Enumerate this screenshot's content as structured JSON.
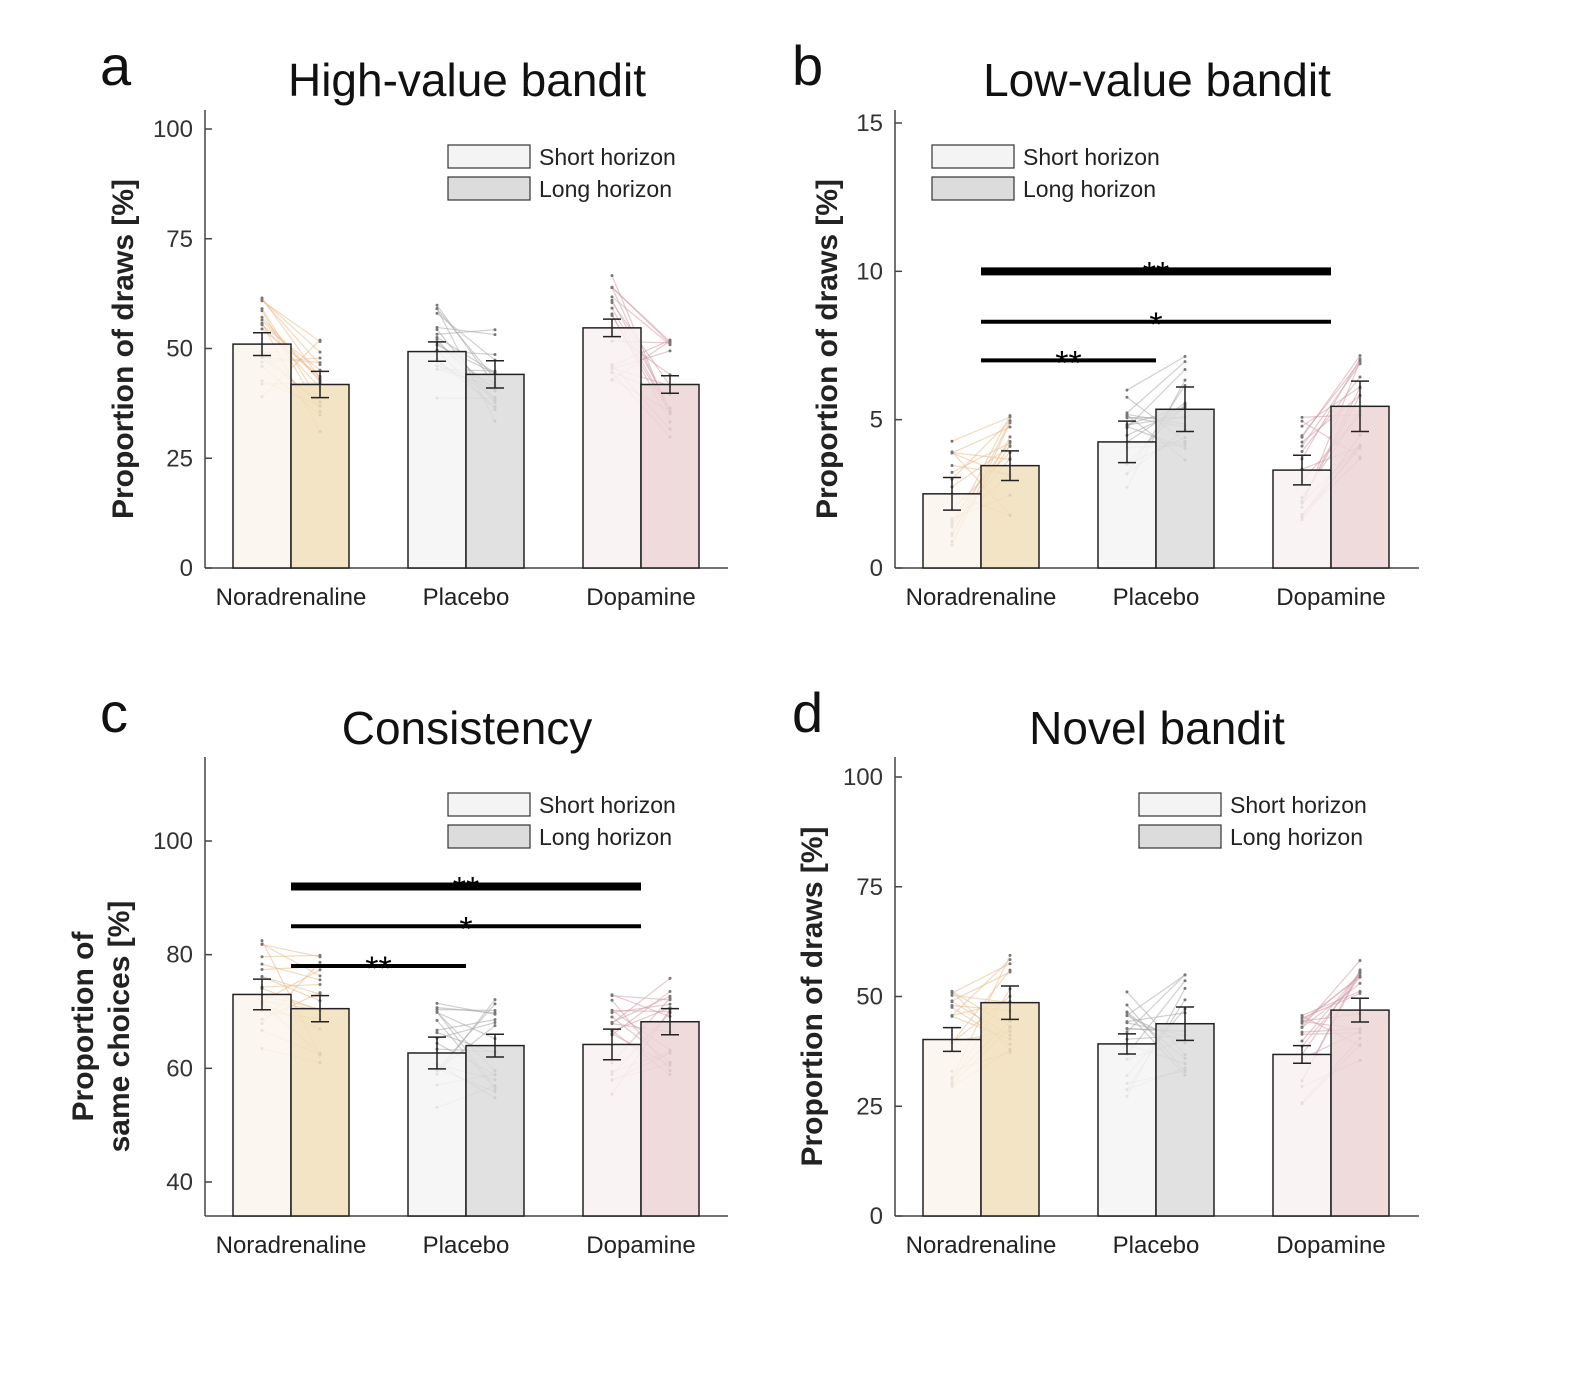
{
  "chart_data": [
    {
      "panel": "a",
      "type": "bar",
      "title": "High-value bandit",
      "ylabel": "Proportion of draws [%]",
      "xlabel": "",
      "ylim": [
        0,
        100
      ],
      "yticks": [
        0,
        25,
        50,
        75,
        100
      ],
      "categories": [
        "Noradrenaline",
        "Placebo",
        "Dopamine"
      ],
      "legend": {
        "position": "top-right",
        "entries": [
          "Short horizon",
          "Long horizon"
        ]
      },
      "series": [
        {
          "name": "Short horizon",
          "values": [
            51,
            49.3,
            54.7
          ],
          "errors": [
            2.6,
            2.2,
            2.0
          ]
        },
        {
          "name": "Long horizon",
          "values": [
            41.8,
            44.1,
            41.8
          ],
          "errors": [
            3.0,
            3.1,
            2.0
          ]
        }
      ],
      "colors": {
        "Noradrenaline": [
          "#faf4ec",
          "#f1dfbb"
        ],
        "Placebo": [
          "#f4f4f4",
          "#dcdcdc"
        ],
        "Dopamine": [
          "#f9f1f1",
          "#ecd5d6"
        ]
      },
      "significance": []
    },
    {
      "panel": "b",
      "type": "bar",
      "title": "Low-value bandit",
      "ylabel": "Proportion of draws [%]",
      "xlabel": "",
      "ylim": [
        0,
        15
      ],
      "yticks": [
        0,
        5,
        10,
        15
      ],
      "categories": [
        "Noradrenaline",
        "Placebo",
        "Dopamine"
      ],
      "legend": {
        "position": "top-left",
        "entries": [
          "Short horizon",
          "Long horizon"
        ]
      },
      "series": [
        {
          "name": "Short horizon",
          "values": [
            2.5,
            4.25,
            3.3
          ],
          "errors": [
            0.55,
            0.7,
            0.5
          ]
        },
        {
          "name": "Long horizon",
          "values": [
            3.45,
            5.35,
            5.45
          ],
          "errors": [
            0.5,
            0.75,
            0.85
          ]
        }
      ],
      "colors": {
        "Noradrenaline": [
          "#faf4ec",
          "#f1dfbb"
        ],
        "Placebo": [
          "#f4f4f4",
          "#dcdcdc"
        ],
        "Dopamine": [
          "#f9f1f1",
          "#ecd5d6"
        ]
      },
      "significance": [
        {
          "from": "Noradrenaline",
          "to": "Dopamine",
          "y": 10.0,
          "label": "**",
          "thick": true
        },
        {
          "from": "Noradrenaline",
          "to": "Dopamine",
          "y": 8.3,
          "label": "*",
          "thick": false
        },
        {
          "from": "Noradrenaline",
          "to": "Placebo",
          "y": 7.0,
          "label": "**",
          "thick": false
        }
      ]
    },
    {
      "panel": "c",
      "type": "bar",
      "title": "Consistency",
      "ylabel": "Proportion of same choices [%]",
      "ylabel_lines": [
        "Proportion of",
        "same choices [%]"
      ],
      "xlabel": "",
      "ylim": [
        35,
        115
      ],
      "yticks": [
        40,
        60,
        80,
        100
      ],
      "categories": [
        "Noradrenaline",
        "Placebo",
        "Dopamine"
      ],
      "legend": {
        "position": "top-right",
        "entries": [
          "Short horizon",
          "Long horizon"
        ]
      },
      "series": [
        {
          "name": "Short horizon",
          "values": [
            73,
            62.7,
            64.2
          ],
          "errors": [
            2.7,
            2.8,
            2.7
          ]
        },
        {
          "name": "Long horizon",
          "values": [
            70.5,
            64,
            68.2
          ],
          "errors": [
            2.3,
            2.0,
            2.3
          ]
        }
      ],
      "colors": {
        "Noradrenaline": [
          "#faf4ec",
          "#f1dfbb"
        ],
        "Placebo": [
          "#f4f4f4",
          "#dcdcdc"
        ],
        "Dopamine": [
          "#f9f1f1",
          "#ecd5d6"
        ]
      },
      "significance": [
        {
          "from": "Noradrenaline",
          "to": "Dopamine",
          "y": 92,
          "label": "**",
          "thick": true
        },
        {
          "from": "Noradrenaline",
          "to": "Dopamine",
          "y": 85,
          "label": "*",
          "thick": false
        },
        {
          "from": "Noradrenaline",
          "to": "Placebo",
          "y": 78,
          "label": "**",
          "thick": false
        }
      ]
    },
    {
      "panel": "d",
      "type": "bar",
      "title": "Novel bandit",
      "ylabel": "Proportion of draws [%]",
      "xlabel": "",
      "ylim": [
        0,
        100
      ],
      "yticks": [
        0,
        25,
        50,
        75,
        100
      ],
      "categories": [
        "Noradrenaline",
        "Placebo",
        "Dopamine"
      ],
      "legend": {
        "position": "top-right",
        "entries": [
          "Short horizon",
          "Long horizon"
        ]
      },
      "series": [
        {
          "name": "Short horizon",
          "values": [
            40.2,
            39.2,
            36.8
          ],
          "errors": [
            2.7,
            2.3,
            2.0
          ]
        },
        {
          "name": "Long horizon",
          "values": [
            48.6,
            43.8,
            46.9
          ],
          "errors": [
            3.8,
            3.8,
            2.7
          ]
        }
      ],
      "colors": {
        "Noradrenaline": [
          "#faf4ec",
          "#f1dfbb"
        ],
        "Placebo": [
          "#f4f4f4",
          "#dcdcdc"
        ],
        "Dopamine": [
          "#f9f1f1",
          "#ecd5d6"
        ]
      },
      "significance": []
    }
  ],
  "individual_line_colors": {
    "Noradrenaline": "#e9b98a",
    "Placebo": "#a8a8a8",
    "Dopamine": "#d29aa5"
  }
}
